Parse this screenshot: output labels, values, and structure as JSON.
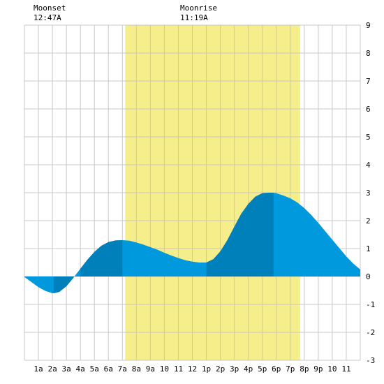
{
  "moon": {
    "moonset_label": "Moonset",
    "moonset_time": "12:47A",
    "moonrise_label": "Moonrise",
    "moonrise_time": "11:19A"
  },
  "colors": {
    "daylight": "#f5ee8a",
    "tide_fill": "#0099dd",
    "tide_fill_dark": "#0080bb",
    "grid": "#c8c8c8",
    "background": "#ffffff"
  },
  "chart_data": {
    "type": "area",
    "x_unit": "hour of day",
    "ylim": [
      -3,
      9
    ],
    "xlim": [
      0,
      24
    ],
    "grid": true,
    "y_ticks": [
      "-3",
      "-2",
      "-1",
      "0",
      "1",
      "2",
      "3",
      "4",
      "5",
      "6",
      "7",
      "8",
      "9"
    ],
    "x_tick_labels": [
      "1a",
      "2a",
      "3a",
      "4a",
      "5a",
      "6a",
      "7a",
      "8a",
      "9a",
      "10",
      "11",
      "12",
      "1p",
      "2p",
      "3p",
      "4p",
      "5p",
      "6p",
      "7p",
      "8p",
      "9p",
      "10",
      "11"
    ],
    "daylight_hours": [
      7.2,
      19.7
    ],
    "tide_extrema": [
      {
        "hour": 2.1,
        "height": -0.6,
        "type": "low"
      },
      {
        "hour": 7.0,
        "height": 1.3,
        "type": "high"
      },
      {
        "hour": 13.0,
        "height": 0.5,
        "type": "low"
      },
      {
        "hour": 17.8,
        "height": 3.0,
        "type": "high"
      }
    ],
    "tide_curve": {
      "x": [
        0,
        0.5,
        1,
        1.5,
        2,
        2.1,
        2.5,
        3,
        3.5,
        4,
        4.5,
        5,
        5.5,
        6,
        6.5,
        7,
        7.5,
        8,
        8.5,
        9,
        9.5,
        10,
        10.5,
        11,
        11.5,
        12,
        12.5,
        13,
        13.5,
        14,
        14.5,
        15,
        15.5,
        16,
        16.5,
        17,
        17.5,
        17.8,
        18,
        18.5,
        19,
        19.5,
        20,
        20.5,
        21,
        21.5,
        22,
        22.5,
        23,
        23.5,
        24
      ],
      "y": [
        -0.02,
        -0.2,
        -0.38,
        -0.52,
        -0.6,
        -0.6,
        -0.55,
        -0.35,
        -0.05,
        0.28,
        0.6,
        0.88,
        1.1,
        1.23,
        1.29,
        1.3,
        1.28,
        1.22,
        1.14,
        1.05,
        0.96,
        0.85,
        0.75,
        0.66,
        0.58,
        0.53,
        0.5,
        0.5,
        0.62,
        0.9,
        1.3,
        1.78,
        2.25,
        2.6,
        2.86,
        2.98,
        3.0,
        3.0,
        2.98,
        2.9,
        2.8,
        2.65,
        2.45,
        2.2,
        1.92,
        1.62,
        1.32,
        1.02,
        0.72,
        0.46,
        0.25
      ]
    },
    "dark_bands": [
      [
        2.1,
        3.5
      ],
      [
        4.0,
        7.0
      ],
      [
        13.0,
        17.8
      ]
    ]
  }
}
